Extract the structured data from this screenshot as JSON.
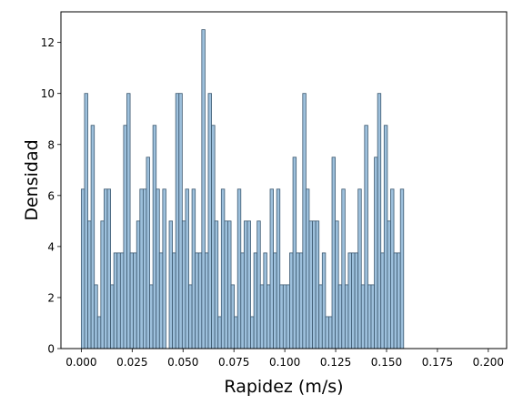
{
  "chart_data": {
    "type": "bar",
    "title": "",
    "xlabel": "Rapidez (m/s)",
    "ylabel": "Densidad",
    "xlim": [
      -0.01,
      0.209
    ],
    "ylim": [
      0,
      13.2
    ],
    "xticks": [
      0.0,
      0.025,
      0.05,
      0.075,
      0.1,
      0.125,
      0.15,
      0.175,
      0.2
    ],
    "xtick_labels": [
      "0.000",
      "0.025",
      "0.050",
      "0.075",
      "0.100",
      "0.125",
      "0.150",
      "0.175",
      "0.200"
    ],
    "yticks": [
      0,
      2,
      4,
      6,
      8,
      10,
      12
    ],
    "ytick_labels": [
      "0",
      "2",
      "4",
      "6",
      "8",
      "10",
      "12"
    ],
    "bin_start": 0.0,
    "bin_width": 0.0016,
    "values": [
      6.25,
      10.0,
      5.0,
      8.75,
      2.5,
      1.25,
      5.0,
      6.25,
      6.25,
      2.5,
      3.75,
      3.75,
      3.75,
      8.75,
      10.0,
      3.75,
      3.75,
      5.0,
      6.25,
      6.25,
      7.5,
      2.5,
      8.75,
      6.25,
      3.75,
      6.25,
      0,
      5.0,
      3.75,
      10.0,
      10.0,
      5.0,
      6.25,
      2.5,
      6.25,
      3.75,
      3.75,
      12.5,
      3.75,
      10.0,
      8.75,
      5.0,
      1.25,
      6.25,
      5.0,
      5.0,
      2.5,
      1.25,
      6.25,
      3.75,
      5.0,
      5.0,
      1.25,
      3.75,
      5.0,
      2.5,
      3.75,
      2.5,
      6.25,
      3.75,
      6.25,
      2.5,
      2.5,
      2.5,
      3.75,
      7.5,
      3.75,
      3.75,
      10.0,
      6.25,
      5.0,
      5.0,
      5.0,
      2.5,
      3.75,
      1.25,
      1.25,
      7.5,
      5.0,
      2.5,
      6.25,
      2.5,
      3.75,
      3.75,
      3.75,
      6.25,
      2.5,
      8.75,
      2.5,
      2.5,
      7.5,
      10.0,
      3.75,
      8.75,
      5.0,
      6.25,
      3.75,
      3.75,
      6.25
    ],
    "grid": false,
    "legend": "none",
    "bar_color": "#9dc0dc",
    "edge_color": "#3d5970"
  }
}
